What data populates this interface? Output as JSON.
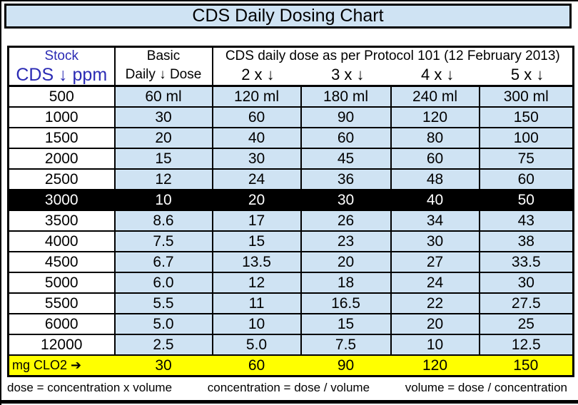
{
  "title": "CDS Daily Dosing Chart",
  "colors": {
    "cell_blue": "#cfe3f3",
    "header_text_blue": "#2b2bb4",
    "highlight_row_bg": "#000000",
    "highlight_row_text": "#ffffff",
    "mg_row_yellow": "#ffff00"
  },
  "table": {
    "header": {
      "stock_line1": "Stock",
      "stock_line2": "CDS ↓ ppm",
      "basic_line1": "Basic",
      "basic_line2": "Daily ↓ Dose",
      "protocol_title": "CDS daily dose as per Protocol 101 (12 February 2013)",
      "multipliers": [
        "2 x  ↓",
        "3 x  ↓",
        "4 x  ↓",
        "5 x  ↓"
      ]
    },
    "rows": [
      {
        "stock": "500",
        "highlight": false,
        "values": [
          "60 ml",
          "120 ml",
          "180 ml",
          "240 ml",
          "300 ml"
        ]
      },
      {
        "stock": "1000",
        "highlight": false,
        "values": [
          "30",
          "60",
          "90",
          "120",
          "150"
        ]
      },
      {
        "stock": "1500",
        "highlight": false,
        "values": [
          "20",
          "40",
          "60",
          "80",
          "100"
        ]
      },
      {
        "stock": "2000",
        "highlight": false,
        "values": [
          "15",
          "30",
          "45",
          "60",
          "75"
        ]
      },
      {
        "stock": "2500",
        "highlight": false,
        "values": [
          "12",
          "24",
          "36",
          "48",
          "60"
        ]
      },
      {
        "stock": "3000",
        "highlight": true,
        "values": [
          "10",
          "20",
          "30",
          "40",
          "50"
        ]
      },
      {
        "stock": "3500",
        "highlight": false,
        "values": [
          "8.6",
          "17",
          "26",
          "34",
          "43"
        ]
      },
      {
        "stock": "4000",
        "highlight": false,
        "values": [
          "7.5",
          "15",
          "23",
          "30",
          "38"
        ]
      },
      {
        "stock": "4500",
        "highlight": false,
        "values": [
          "6.7",
          "13.5",
          "20",
          "27",
          "33.5"
        ]
      },
      {
        "stock": "5000",
        "highlight": false,
        "values": [
          "6.0",
          "12",
          "18",
          "24",
          "30"
        ]
      },
      {
        "stock": "5500",
        "highlight": false,
        "values": [
          "5.5",
          "11",
          "16.5",
          "22",
          "27.5"
        ]
      },
      {
        "stock": "6000",
        "highlight": false,
        "values": [
          "5.0",
          "10",
          "15",
          "20",
          "25"
        ]
      },
      {
        "stock": "12000",
        "highlight": false,
        "values": [
          "2.5",
          "5.0",
          "7.5",
          "10",
          "12.5"
        ]
      }
    ],
    "mg_row": {
      "label": "mg  CLO2 ➔",
      "values": [
        "30",
        "60",
        "90",
        "120",
        "150"
      ]
    }
  },
  "formulas": [
    "dose = concentration x volume",
    "concentration = dose / volume",
    "volume = dose / concentration"
  ]
}
